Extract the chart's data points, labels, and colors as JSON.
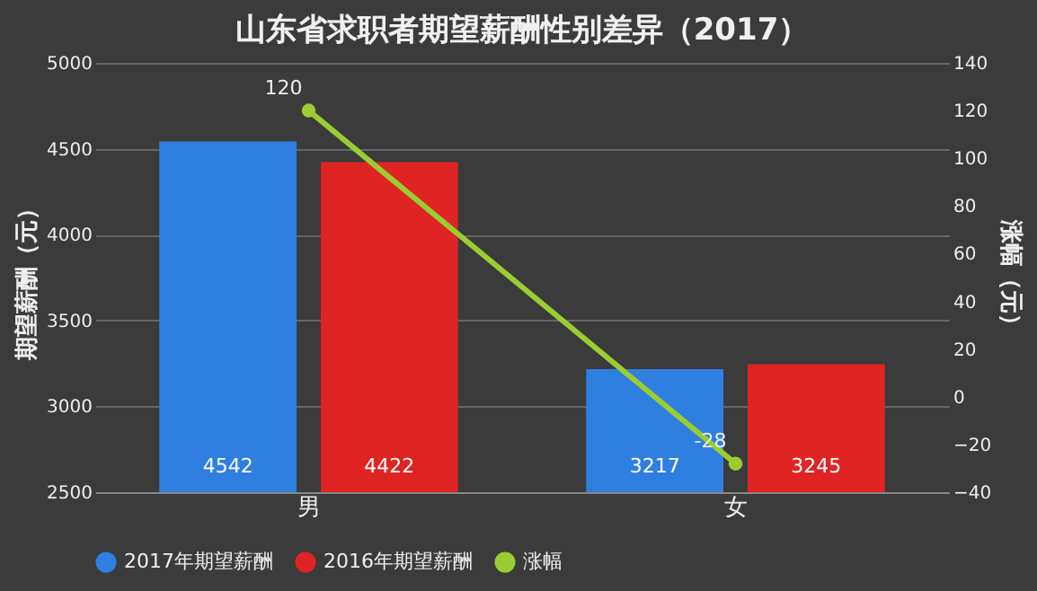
{
  "chart_data": {
    "type": "bar",
    "title": "山东省求职者期望薪酬性别差异（2017）",
    "ylabel": "期望薪酬（元）",
    "y2label": "涨幅（元）",
    "categories": [
      "男",
      "女"
    ],
    "series": [
      {
        "name": "2017年期望薪酬",
        "color": "#2f7fe0",
        "values": [
          4542,
          3217
        ]
      },
      {
        "name": "2016年期望薪酬",
        "color": "#e02424",
        "values": [
          4422,
          3245
        ]
      },
      {
        "name": "涨幅",
        "type": "line",
        "axis": "y2",
        "color": "#9acd32",
        "marker": "circle",
        "values": [
          120,
          -28
        ]
      }
    ],
    "ylim": [
      2500,
      5000
    ],
    "yticks": [
      2500,
      3000,
      3500,
      4000,
      4500,
      5000
    ],
    "y2lim": [
      -40,
      140
    ],
    "y2ticks": [
      -40,
      -20,
      0,
      20,
      40,
      60,
      80,
      100,
      120,
      140
    ],
    "data_labels": true,
    "grid": "y",
    "legend": "bottom"
  }
}
